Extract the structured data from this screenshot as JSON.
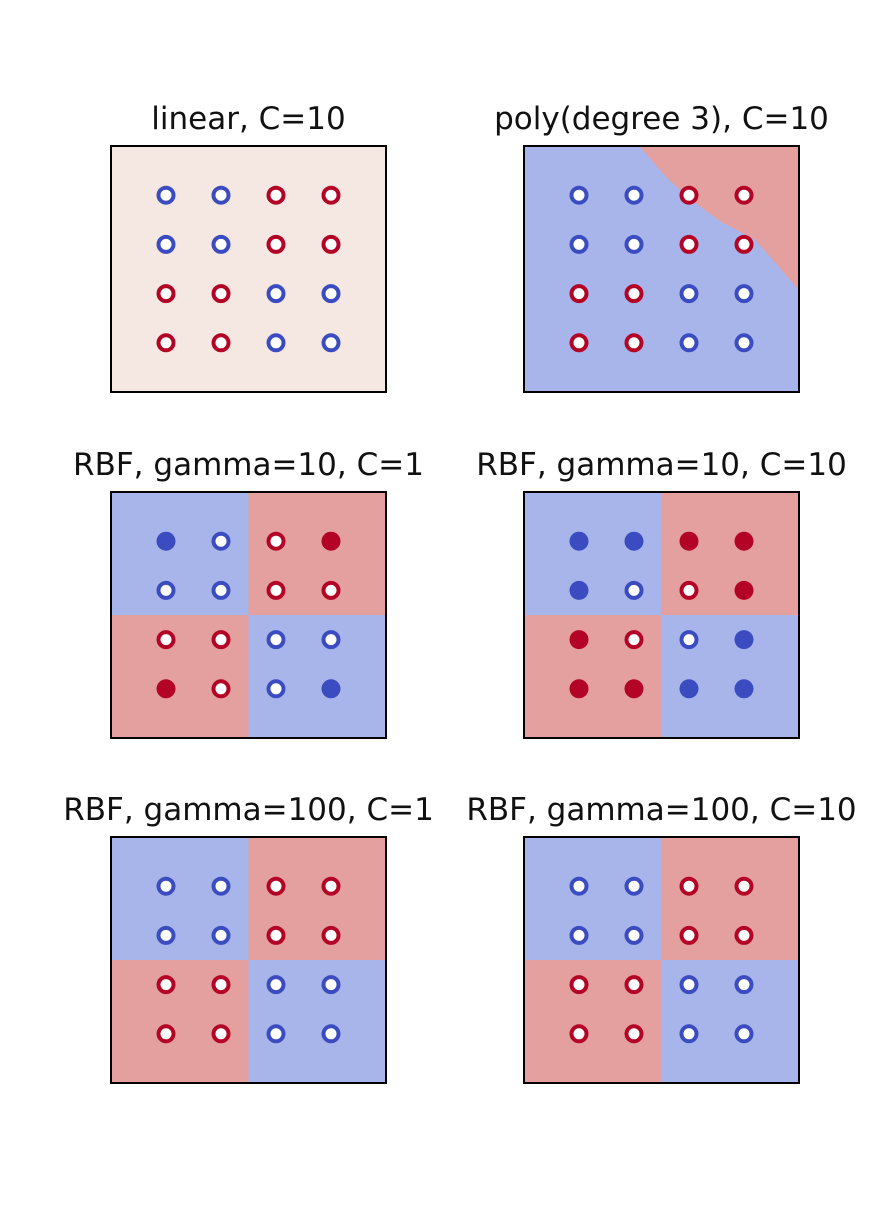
{
  "figure": {
    "rows": 3,
    "cols": 2
  },
  "colors": {
    "class_pos": "#b40426",
    "class_neg": "#3b4cc0",
    "region_pos": "#e4a09e",
    "region_neg": "#a7b5ea",
    "region_neutral": "#f5e7e1",
    "frame": "#000000",
    "marker_fill_non_sv": "#ffffff"
  },
  "chart_data": [
    {
      "type": "scatter",
      "title": "linear, C=10",
      "xlim": [
        0,
        5
      ],
      "ylim": [
        0,
        5
      ],
      "region": "uniform",
      "points": [
        {
          "x": 1,
          "y": 4,
          "label": -1,
          "sv": true
        },
        {
          "x": 2,
          "y": 4,
          "label": -1,
          "sv": true
        },
        {
          "x": 3,
          "y": 4,
          "label": 1,
          "sv": true
        },
        {
          "x": 4,
          "y": 4,
          "label": 1,
          "sv": true
        },
        {
          "x": 1,
          "y": 3,
          "label": -1,
          "sv": true
        },
        {
          "x": 2,
          "y": 3,
          "label": -1,
          "sv": true
        },
        {
          "x": 3,
          "y": 3,
          "label": 1,
          "sv": true
        },
        {
          "x": 4,
          "y": 3,
          "label": 1,
          "sv": true
        },
        {
          "x": 1,
          "y": 2,
          "label": 1,
          "sv": true
        },
        {
          "x": 2,
          "y": 2,
          "label": 1,
          "sv": true
        },
        {
          "x": 3,
          "y": 2,
          "label": -1,
          "sv": true
        },
        {
          "x": 4,
          "y": 2,
          "label": -1,
          "sv": true
        },
        {
          "x": 1,
          "y": 1,
          "label": 1,
          "sv": true
        },
        {
          "x": 2,
          "y": 1,
          "label": 1,
          "sv": true
        },
        {
          "x": 3,
          "y": 1,
          "label": -1,
          "sv": true
        },
        {
          "x": 4,
          "y": 1,
          "label": -1,
          "sv": true
        }
      ]
    },
    {
      "type": "scatter",
      "title": "poly(degree 3), C=10",
      "xlim": [
        0,
        5
      ],
      "ylim": [
        0,
        5
      ],
      "region": "poly",
      "points": [
        {
          "x": 1,
          "y": 4,
          "label": -1,
          "sv": true
        },
        {
          "x": 2,
          "y": 4,
          "label": -1,
          "sv": true
        },
        {
          "x": 3,
          "y": 4,
          "label": 1,
          "sv": true
        },
        {
          "x": 4,
          "y": 4,
          "label": 1,
          "sv": true
        },
        {
          "x": 1,
          "y": 3,
          "label": -1,
          "sv": true
        },
        {
          "x": 2,
          "y": 3,
          "label": -1,
          "sv": true
        },
        {
          "x": 3,
          "y": 3,
          "label": 1,
          "sv": true
        },
        {
          "x": 4,
          "y": 3,
          "label": 1,
          "sv": true
        },
        {
          "x": 1,
          "y": 2,
          "label": 1,
          "sv": true
        },
        {
          "x": 2,
          "y": 2,
          "label": 1,
          "sv": true
        },
        {
          "x": 3,
          "y": 2,
          "label": -1,
          "sv": true
        },
        {
          "x": 4,
          "y": 2,
          "label": -1,
          "sv": true
        },
        {
          "x": 1,
          "y": 1,
          "label": 1,
          "sv": true
        },
        {
          "x": 2,
          "y": 1,
          "label": 1,
          "sv": true
        },
        {
          "x": 3,
          "y": 1,
          "label": -1,
          "sv": true
        },
        {
          "x": 4,
          "y": 1,
          "label": -1,
          "sv": true
        }
      ]
    },
    {
      "type": "scatter",
      "title": "RBF, gamma=10, C=1",
      "xlim": [
        0,
        5
      ],
      "ylim": [
        0,
        5
      ],
      "region": "quadrants",
      "points": [
        {
          "x": 1,
          "y": 4,
          "label": -1,
          "sv": false
        },
        {
          "x": 2,
          "y": 4,
          "label": -1,
          "sv": true
        },
        {
          "x": 3,
          "y": 4,
          "label": 1,
          "sv": true
        },
        {
          "x": 4,
          "y": 4,
          "label": 1,
          "sv": false
        },
        {
          "x": 1,
          "y": 3,
          "label": -1,
          "sv": true
        },
        {
          "x": 2,
          "y": 3,
          "label": -1,
          "sv": true
        },
        {
          "x": 3,
          "y": 3,
          "label": 1,
          "sv": true
        },
        {
          "x": 4,
          "y": 3,
          "label": 1,
          "sv": true
        },
        {
          "x": 1,
          "y": 2,
          "label": 1,
          "sv": true
        },
        {
          "x": 2,
          "y": 2,
          "label": 1,
          "sv": true
        },
        {
          "x": 3,
          "y": 2,
          "label": -1,
          "sv": true
        },
        {
          "x": 4,
          "y": 2,
          "label": -1,
          "sv": true
        },
        {
          "x": 1,
          "y": 1,
          "label": 1,
          "sv": false
        },
        {
          "x": 2,
          "y": 1,
          "label": 1,
          "sv": true
        },
        {
          "x": 3,
          "y": 1,
          "label": -1,
          "sv": true
        },
        {
          "x": 4,
          "y": 1,
          "label": -1,
          "sv": false
        }
      ]
    },
    {
      "type": "scatter",
      "title": "RBF, gamma=10, C=10",
      "xlim": [
        0,
        5
      ],
      "ylim": [
        0,
        5
      ],
      "region": "quadrants",
      "points": [
        {
          "x": 1,
          "y": 4,
          "label": -1,
          "sv": false
        },
        {
          "x": 2,
          "y": 4,
          "label": -1,
          "sv": false
        },
        {
          "x": 3,
          "y": 4,
          "label": 1,
          "sv": false
        },
        {
          "x": 4,
          "y": 4,
          "label": 1,
          "sv": false
        },
        {
          "x": 1,
          "y": 3,
          "label": -1,
          "sv": false
        },
        {
          "x": 2,
          "y": 3,
          "label": -1,
          "sv": true
        },
        {
          "x": 3,
          "y": 3,
          "label": 1,
          "sv": true
        },
        {
          "x": 4,
          "y": 3,
          "label": 1,
          "sv": false
        },
        {
          "x": 1,
          "y": 2,
          "label": 1,
          "sv": false
        },
        {
          "x": 2,
          "y": 2,
          "label": 1,
          "sv": true
        },
        {
          "x": 3,
          "y": 2,
          "label": -1,
          "sv": true
        },
        {
          "x": 4,
          "y": 2,
          "label": -1,
          "sv": false
        },
        {
          "x": 1,
          "y": 1,
          "label": 1,
          "sv": false
        },
        {
          "x": 2,
          "y": 1,
          "label": 1,
          "sv": false
        },
        {
          "x": 3,
          "y": 1,
          "label": -1,
          "sv": false
        },
        {
          "x": 4,
          "y": 1,
          "label": -1,
          "sv": false
        }
      ]
    },
    {
      "type": "scatter",
      "title": "RBF, gamma=100, C=1",
      "xlim": [
        0,
        5
      ],
      "ylim": [
        0,
        5
      ],
      "region": "quadrants",
      "points": [
        {
          "x": 1,
          "y": 4,
          "label": -1,
          "sv": true
        },
        {
          "x": 2,
          "y": 4,
          "label": -1,
          "sv": true
        },
        {
          "x": 3,
          "y": 4,
          "label": 1,
          "sv": true
        },
        {
          "x": 4,
          "y": 4,
          "label": 1,
          "sv": true
        },
        {
          "x": 1,
          "y": 3,
          "label": -1,
          "sv": true
        },
        {
          "x": 2,
          "y": 3,
          "label": -1,
          "sv": true
        },
        {
          "x": 3,
          "y": 3,
          "label": 1,
          "sv": true
        },
        {
          "x": 4,
          "y": 3,
          "label": 1,
          "sv": true
        },
        {
          "x": 1,
          "y": 2,
          "label": 1,
          "sv": true
        },
        {
          "x": 2,
          "y": 2,
          "label": 1,
          "sv": true
        },
        {
          "x": 3,
          "y": 2,
          "label": -1,
          "sv": true
        },
        {
          "x": 4,
          "y": 2,
          "label": -1,
          "sv": true
        },
        {
          "x": 1,
          "y": 1,
          "label": 1,
          "sv": true
        },
        {
          "x": 2,
          "y": 1,
          "label": 1,
          "sv": true
        },
        {
          "x": 3,
          "y": 1,
          "label": -1,
          "sv": true
        },
        {
          "x": 4,
          "y": 1,
          "label": -1,
          "sv": true
        }
      ]
    },
    {
      "type": "scatter",
      "title": "RBF, gamma=100, C=10",
      "xlim": [
        0,
        5
      ],
      "ylim": [
        0,
        5
      ],
      "region": "quadrants",
      "points": [
        {
          "x": 1,
          "y": 4,
          "label": -1,
          "sv": true
        },
        {
          "x": 2,
          "y": 4,
          "label": -1,
          "sv": true
        },
        {
          "x": 3,
          "y": 4,
          "label": 1,
          "sv": true
        },
        {
          "x": 4,
          "y": 4,
          "label": 1,
          "sv": true
        },
        {
          "x": 1,
          "y": 3,
          "label": -1,
          "sv": true
        },
        {
          "x": 2,
          "y": 3,
          "label": -1,
          "sv": true
        },
        {
          "x": 3,
          "y": 3,
          "label": 1,
          "sv": true
        },
        {
          "x": 4,
          "y": 3,
          "label": 1,
          "sv": true
        },
        {
          "x": 1,
          "y": 2,
          "label": 1,
          "sv": true
        },
        {
          "x": 2,
          "y": 2,
          "label": 1,
          "sv": true
        },
        {
          "x": 3,
          "y": 2,
          "label": -1,
          "sv": true
        },
        {
          "x": 4,
          "y": 2,
          "label": -1,
          "sv": true
        },
        {
          "x": 1,
          "y": 1,
          "label": 1,
          "sv": true
        },
        {
          "x": 2,
          "y": 1,
          "label": 1,
          "sv": true
        },
        {
          "x": 3,
          "y": 1,
          "label": -1,
          "sv": true
        },
        {
          "x": 4,
          "y": 1,
          "label": -1,
          "sv": true
        }
      ]
    }
  ]
}
